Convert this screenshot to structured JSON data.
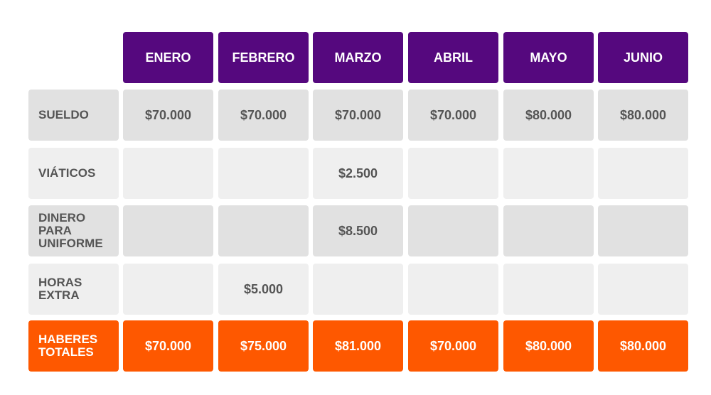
{
  "table": {
    "header": [
      "ENERO",
      "FEBRERO",
      "MARZO",
      "ABRIL",
      "MAYO",
      "JUNIO"
    ],
    "rows": [
      {
        "label": [
          "SUELDO"
        ],
        "cells": [
          "$70.000",
          "$70.000",
          "$70.000",
          "$70.000",
          "$80.000",
          "$80.000"
        ]
      },
      {
        "label": [
          "VIÁTICOS"
        ],
        "cells": [
          null,
          null,
          "$2.500",
          null,
          null,
          null
        ]
      },
      {
        "label": [
          "DINERO",
          "PARA",
          "UNIFORME"
        ],
        "cells": [
          null,
          null,
          "$8.500",
          null,
          null,
          null
        ]
      },
      {
        "label": [
          "HORAS",
          "EXTRA"
        ],
        "cells": [
          null,
          "$5.000",
          null,
          null,
          null,
          null
        ]
      }
    ],
    "total": {
      "label": [
        "HABERES",
        "TOTALES"
      ],
      "cells": [
        "$70.000",
        "$75.000",
        "$81.000",
        "$70.000",
        "$80.000",
        "$80.000"
      ]
    }
  }
}
